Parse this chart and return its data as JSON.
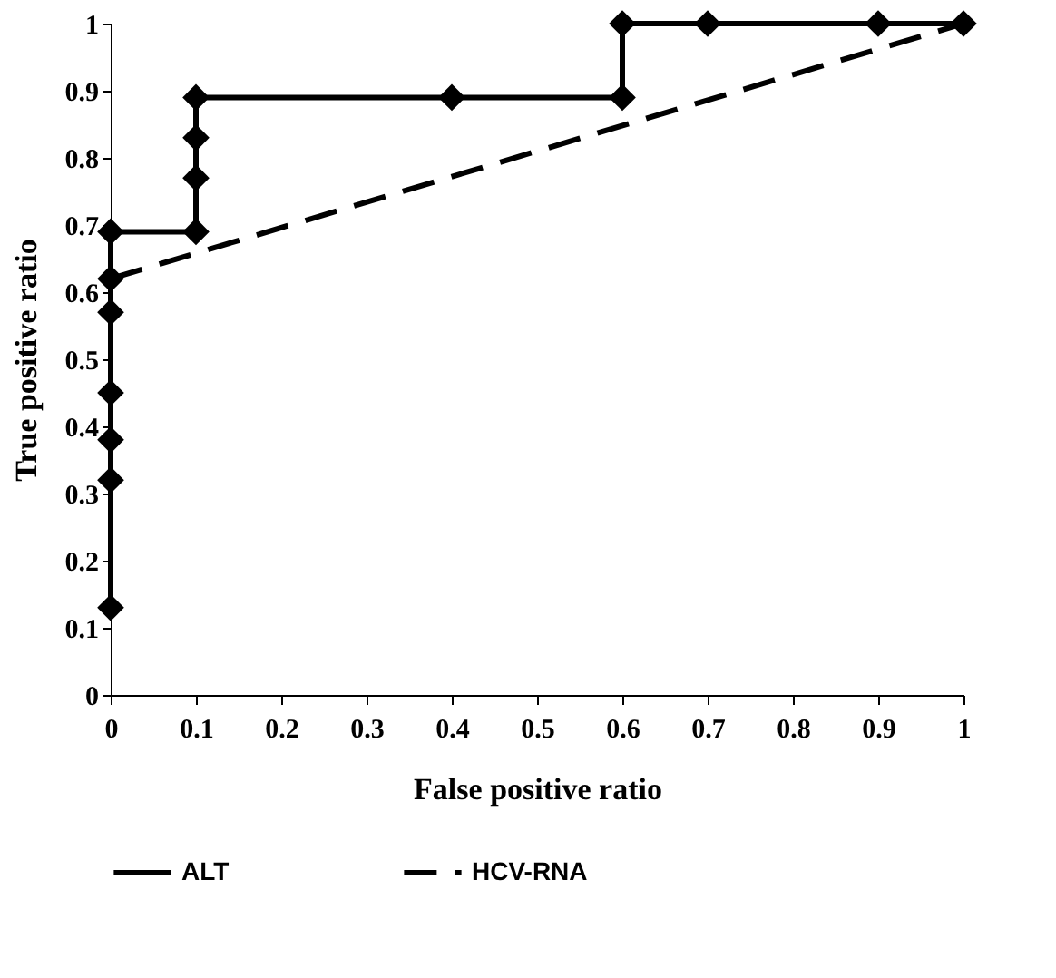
{
  "chart_data": {
    "type": "line",
    "xlabel": "False positive ratio",
    "ylabel": "True positive ratio",
    "xlim": [
      0,
      1
    ],
    "ylim": [
      0,
      1
    ],
    "xticks": [
      0,
      0.1,
      0.2,
      0.3,
      0.4,
      0.5,
      0.6,
      0.7,
      0.8,
      0.9,
      1
    ],
    "yticks": [
      0,
      0.1,
      0.2,
      0.3,
      0.4,
      0.5,
      0.6,
      0.7,
      0.8,
      0.9,
      1
    ],
    "grid": false,
    "legend": "bottom",
    "series": [
      {
        "name": "ALT",
        "color": "#000000",
        "marker": "diamond",
        "line_style": "solid",
        "x": [
          0,
          0,
          0,
          0,
          0,
          0,
          0,
          0.1,
          0.1,
          0.1,
          0.1,
          0.4,
          0.6,
          0.6,
          0.7,
          0.9,
          1
        ],
        "values": [
          0.13,
          0.32,
          0.38,
          0.45,
          0.57,
          0.62,
          0.69,
          0.69,
          0.77,
          0.83,
          0.89,
          0.89,
          0.89,
          1,
          1,
          1,
          1
        ]
      },
      {
        "name": "HCV-RNA",
        "color": "#000000",
        "marker": "none",
        "line_style": "dashed",
        "x": [
          0,
          1
        ],
        "values": [
          0.62,
          1
        ]
      }
    ]
  }
}
